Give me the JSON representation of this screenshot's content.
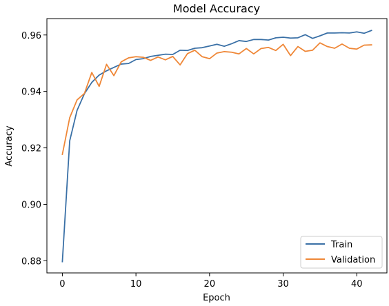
{
  "chart_data": {
    "type": "line",
    "title": "Model Accuracy",
    "xlabel": "Epoch",
    "ylabel": "Accuracy",
    "xlim": [
      -2.1,
      44.1
    ],
    "ylim": [
      0.8757,
      0.9658
    ],
    "xticks": [
      0,
      10,
      20,
      30,
      40
    ],
    "yticks": [
      0.88,
      0.9,
      0.92,
      0.94,
      0.96
    ],
    "ytick_labels": [
      "0.88",
      "0.90",
      "0.92",
      "0.94",
      "0.96"
    ],
    "grid": false,
    "legend_position": "lower-right",
    "x": [
      0,
      1,
      2,
      3,
      4,
      5,
      6,
      7,
      8,
      9,
      10,
      11,
      12,
      13,
      14,
      15,
      16,
      17,
      18,
      19,
      20,
      21,
      22,
      23,
      24,
      25,
      26,
      27,
      28,
      29,
      30,
      31,
      32,
      33,
      34,
      35,
      36,
      37,
      38,
      39,
      40,
      41,
      42
    ],
    "series": [
      {
        "name": "Train",
        "color": "#3a70a6",
        "values": [
          0.8797,
          0.9225,
          0.9333,
          0.9392,
          0.9432,
          0.9458,
          0.9473,
          0.9485,
          0.9497,
          0.9499,
          0.9513,
          0.9516,
          0.9524,
          0.9528,
          0.9532,
          0.9531,
          0.9546,
          0.9545,
          0.9553,
          0.9555,
          0.9561,
          0.9567,
          0.956,
          0.9569,
          0.958,
          0.9577,
          0.9584,
          0.9584,
          0.9582,
          0.959,
          0.9592,
          0.9589,
          0.959,
          0.9601,
          0.9588,
          0.9597,
          0.9607,
          0.9607,
          0.9608,
          0.9607,
          0.9611,
          0.9606,
          0.9616
        ]
      },
      {
        "name": "Validation",
        "color": "#ef8737",
        "values": [
          0.9177,
          0.9307,
          0.937,
          0.9393,
          0.9467,
          0.9418,
          0.9496,
          0.9456,
          0.9505,
          0.9519,
          0.9523,
          0.9521,
          0.951,
          0.9522,
          0.9512,
          0.9524,
          0.9494,
          0.9534,
          0.9546,
          0.9523,
          0.9516,
          0.9536,
          0.9541,
          0.9539,
          0.9533,
          0.9552,
          0.9533,
          0.9552,
          0.9556,
          0.9545,
          0.9567,
          0.9527,
          0.9559,
          0.9542,
          0.9546,
          0.9572,
          0.9559,
          0.9553,
          0.9568,
          0.9553,
          0.955,
          0.9564,
          0.9565
        ]
      }
    ]
  }
}
